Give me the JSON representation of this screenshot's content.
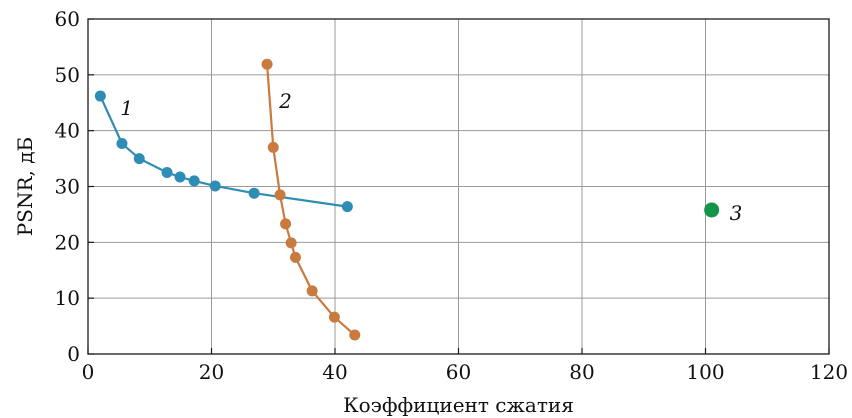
{
  "chart_data": {
    "type": "scatter",
    "title": "",
    "xlabel": "Коэффициент сжатия",
    "ylabel": "PSNR, дБ",
    "xlim": [
      0,
      120
    ],
    "ylim": [
      0,
      60
    ],
    "xticks": [
      "0",
      "20",
      "40",
      "60",
      "80",
      "100",
      "120"
    ],
    "yticks": [
      "0",
      "10",
      "20",
      "30",
      "40",
      "50",
      "60"
    ],
    "grid": true,
    "legend": "none",
    "series": [
      {
        "name": "1",
        "color": "#2e8db5",
        "marker_size": "normal",
        "connected": true,
        "x": [
          2,
          5.5,
          8.3,
          12.8,
          14.9,
          17.2,
          20.6,
          26.9,
          42.0
        ],
        "y": [
          46.2,
          37.7,
          35.0,
          32.5,
          31.7,
          31.0,
          30.1,
          28.8,
          26.4
        ]
      },
      {
        "name": "2",
        "color": "#c87a3f",
        "marker_size": "normal",
        "connected": true,
        "x": [
          29.0,
          30.0,
          31.1,
          32.0,
          32.9,
          33.6,
          36.3,
          39.9,
          43.2
        ],
        "y": [
          51.9,
          37.0,
          28.5,
          23.3,
          19.9,
          17.3,
          11.3,
          6.6,
          3.4
        ]
      },
      {
        "name": "3",
        "color": "#139447",
        "marker_size": "large",
        "connected": false,
        "x": [
          101.0
        ],
        "y": [
          25.8
        ]
      }
    ]
  }
}
